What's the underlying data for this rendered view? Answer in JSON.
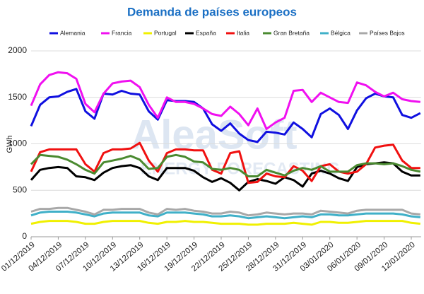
{
  "chart_data": {
    "type": "line",
    "title": "Demanda de países europeos",
    "y_label": "GWh",
    "watermark": [
      "AleaSoft",
      "ENERGY FORECASTING"
    ],
    "categories": [
      "01/12/2019",
      null,
      null,
      "04/12/2019",
      null,
      null,
      "07/12/2019",
      null,
      null,
      "10/12/2019",
      null,
      null,
      "13/12/2019",
      null,
      null,
      "16/12/2019",
      null,
      null,
      "19/12/2019",
      null,
      null,
      "22/12/2019",
      null,
      null,
      "25/12/2019",
      null,
      null,
      "28/12/2019",
      null,
      null,
      "31/12/2019",
      null,
      null,
      "03/01/2020",
      null,
      null,
      "06/01/2020",
      null,
      null,
      "09/01/2020",
      null,
      null,
      "12/01/2020",
      null
    ],
    "ylim": [
      0,
      2000
    ],
    "yticks": [
      0,
      500,
      1000,
      1500,
      2000
    ],
    "grid": true,
    "legend": "top",
    "series": [
      {
        "name": "Alemania",
        "color": "#1010e0",
        "values": [
          1190,
          1420,
          1500,
          1510,
          1560,
          1590,
          1350,
          1270,
          1540,
          1530,
          1570,
          1540,
          1530,
          1350,
          1260,
          1470,
          1460,
          1460,
          1450,
          1380,
          1210,
          1140,
          1220,
          1110,
          1040,
          1020,
          1130,
          1120,
          1100,
          1230,
          1160,
          1070,
          1320,
          1380,
          1310,
          1160,
          1360,
          1490,
          1540,
          1510,
          1500,
          1310,
          1280,
          1330
        ]
      },
      {
        "name": "Francia",
        "color": "#f010f0",
        "values": [
          1410,
          1640,
          1740,
          1770,
          1760,
          1700,
          1430,
          1340,
          1540,
          1650,
          1670,
          1680,
          1610,
          1420,
          1280,
          1500,
          1450,
          1450,
          1430,
          1380,
          1320,
          1300,
          1400,
          1320,
          1200,
          1380,
          1160,
          1230,
          1280,
          1570,
          1580,
          1450,
          1550,
          1500,
          1450,
          1440,
          1660,
          1630,
          1560,
          1510,
          1550,
          1480,
          1460,
          1450
        ]
      },
      {
        "name": "Portugal",
        "color": "#f0f000",
        "values": [
          140,
          160,
          170,
          170,
          170,
          160,
          140,
          140,
          160,
          170,
          170,
          170,
          170,
          150,
          140,
          160,
          160,
          170,
          160,
          160,
          150,
          140,
          140,
          140,
          130,
          130,
          140,
          140,
          140,
          150,
          140,
          130,
          160,
          160,
          150,
          150,
          160,
          170,
          170,
          170,
          170,
          170,
          150,
          140
        ]
      },
      {
        "name": "España",
        "color": "#000000",
        "values": [
          610,
          720,
          740,
          750,
          740,
          650,
          640,
          610,
          690,
          740,
          760,
          770,
          740,
          650,
          610,
          740,
          740,
          740,
          710,
          640,
          590,
          630,
          580,
          500,
          590,
          620,
          600,
          570,
          640,
          610,
          540,
          680,
          710,
          680,
          630,
          600,
          750,
          780,
          790,
          800,
          790,
          700,
          660,
          660
        ]
      },
      {
        "name": "Italia",
        "color": "#f01010",
        "values": [
          700,
          910,
          940,
          940,
          940,
          940,
          780,
          700,
          900,
          940,
          940,
          950,
          1010,
          820,
          700,
          900,
          940,
          940,
          930,
          930,
          720,
          680,
          900,
          920,
          580,
          590,
          680,
          650,
          640,
          760,
          710,
          600,
          760,
          780,
          700,
          680,
          700,
          780,
          960,
          980,
          990,
          820,
          740,
          740
        ]
      },
      {
        "name": "Gran Bretaña",
        "color": "#4a8a30",
        "values": [
          780,
          880,
          870,
          860,
          830,
          780,
          720,
          680,
          800,
          820,
          840,
          870,
          830,
          730,
          740,
          860,
          880,
          860,
          810,
          800,
          730,
          720,
          740,
          720,
          650,
          650,
          720,
          690,
          660,
          710,
          740,
          720,
          760,
          700,
          700,
          700,
          770,
          790,
          790,
          780,
          790,
          760,
          720,
          700
        ]
      },
      {
        "name": "Bélgica",
        "color": "#40b0c8",
        "values": [
          230,
          260,
          270,
          270,
          270,
          260,
          240,
          220,
          250,
          260,
          260,
          260,
          260,
          230,
          220,
          260,
          260,
          260,
          250,
          240,
          220,
          220,
          230,
          220,
          200,
          210,
          220,
          210,
          200,
          210,
          220,
          210,
          240,
          240,
          230,
          230,
          240,
          250,
          250,
          250,
          250,
          240,
          220,
          210
        ]
      },
      {
        "name": "Países Bajos",
        "color": "#a8a8a8",
        "values": [
          270,
          300,
          300,
          310,
          310,
          290,
          270,
          240,
          290,
          290,
          300,
          300,
          300,
          260,
          240,
          300,
          290,
          300,
          280,
          270,
          250,
          250,
          270,
          260,
          230,
          240,
          260,
          250,
          240,
          250,
          250,
          240,
          280,
          270,
          260,
          250,
          280,
          290,
          290,
          290,
          290,
          290,
          250,
          240
        ]
      }
    ]
  }
}
